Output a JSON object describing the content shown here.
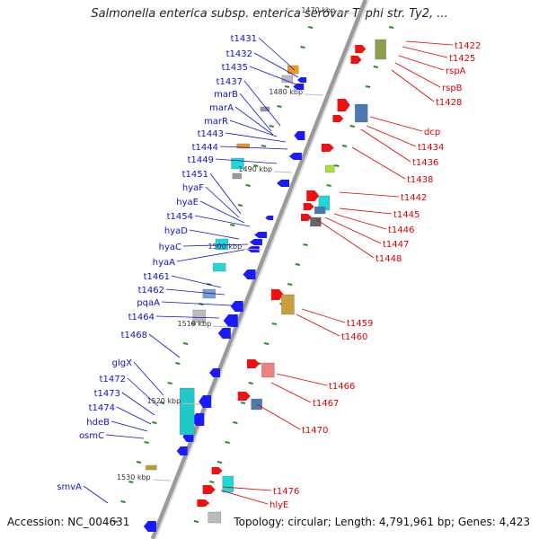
{
  "title": "Salmonella enterica subsp. enterica serovar Typhi str. Ty2, ...",
  "accession": "Accession: NC_004631",
  "topology": "Topology: circular; Length: 4,791,961 bp; Genes: 4,423",
  "backbone": {
    "color": "#9a9a9a"
  },
  "colors": {
    "left_label": "#1010d0",
    "right_label": "#dd0000",
    "tick": "#2a8a2a"
  },
  "ticks": [
    "1470 kbp",
    "1480 kbp",
    "1490 kbp",
    "1500 kbp",
    "1510 kbp",
    "1520 kbp",
    "1530 kbp"
  ],
  "left_genes": [
    "t1431",
    "t1432",
    "t1435",
    "t1437",
    "marB",
    "marA",
    "marR",
    "t1443",
    "t1444",
    "t1449",
    "t1451",
    "hyaF",
    "hyaE",
    "t1454",
    "hyaD",
    "hyaC",
    "hyaA",
    "t1461",
    "t1462",
    "pqaA",
    "t1464",
    "t1468",
    "glgX",
    "t1472",
    "t1473",
    "t1474",
    "hdeB",
    "osmC",
    "smvA"
  ],
  "right_genes": [
    "t1422",
    "t1425",
    "rspA",
    "rspB",
    "t1428",
    "dcp",
    "t1434",
    "t1436",
    "t1438",
    "t1442",
    "t1445",
    "t1446",
    "t1447",
    "t1448",
    "t1459",
    "t1460",
    "t1466",
    "t1467",
    "t1470",
    "t1476",
    "hlyE"
  ]
}
